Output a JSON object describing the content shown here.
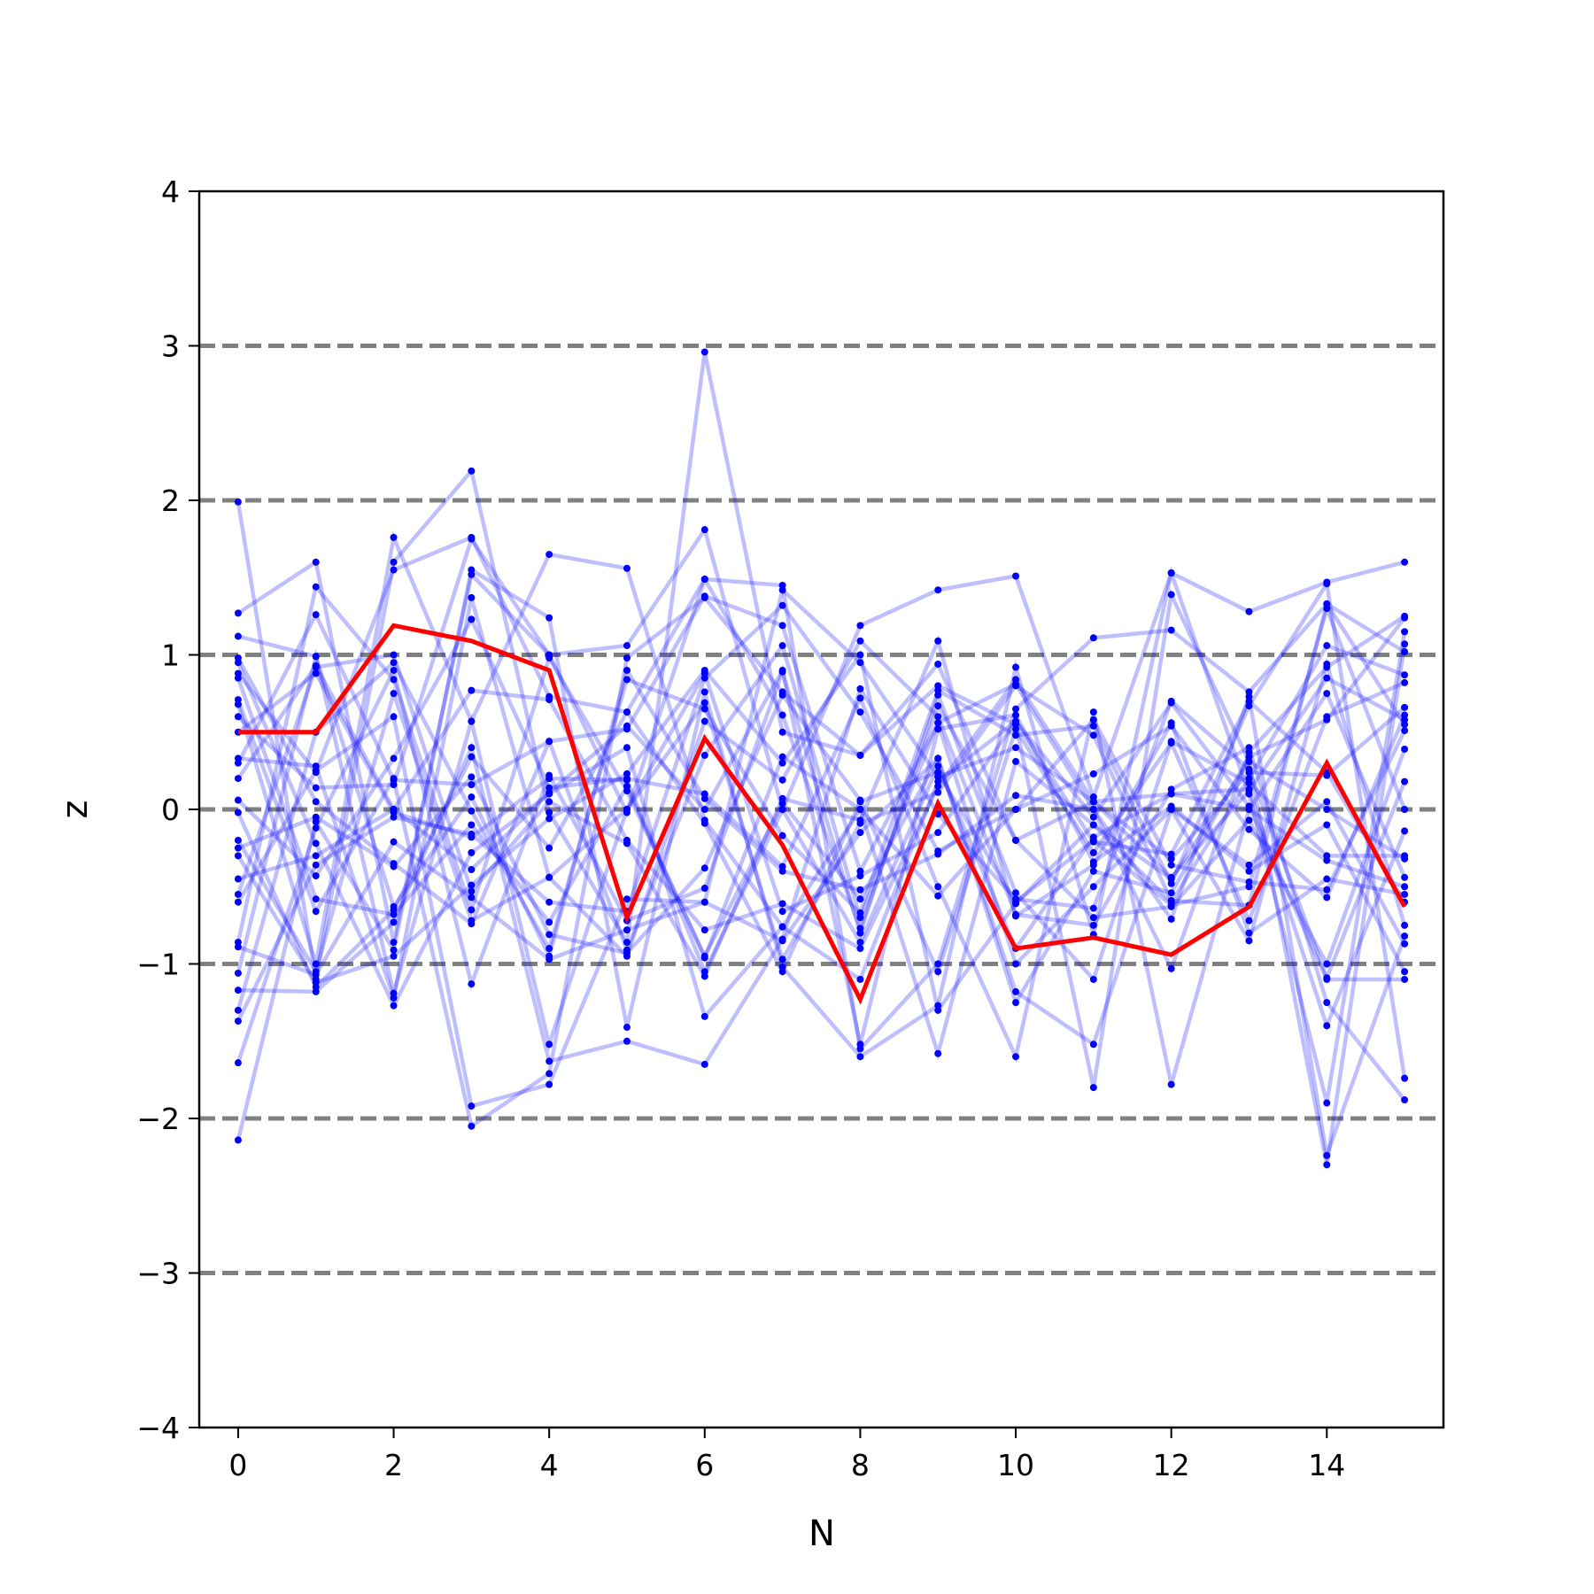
{
  "chart_data": {
    "type": "line",
    "xlabel": "N",
    "ylabel": "z",
    "xlim": [
      -0.5,
      15.5
    ],
    "ylim": [
      -4,
      4
    ],
    "xticks": [
      0,
      2,
      4,
      6,
      8,
      10,
      12,
      14
    ],
    "yticks": [
      -4,
      -3,
      -2,
      -1,
      0,
      1,
      2,
      3,
      4
    ],
    "xtick_labels": [
      "0",
      "2",
      "4",
      "6",
      "8",
      "10",
      "12",
      "14"
    ],
    "ytick_labels": [
      "−4",
      "−3",
      "−2",
      "−1",
      "0",
      "1",
      "2",
      "3",
      "4"
    ],
    "reference_lines": [
      -3,
      -2,
      -1,
      0,
      1,
      2,
      3
    ],
    "colors": {
      "samples": "#0000ff",
      "highlight": "#ff0000",
      "reference": "#808080"
    },
    "x": [
      0,
      1,
      2,
      3,
      4,
      5,
      6,
      7,
      8,
      9,
      10,
      11,
      12,
      13,
      14,
      15
    ],
    "highlight": [
      0.5,
      0.5,
      1.19,
      1.09,
      0.9,
      -0.7,
      0.46,
      -0.23,
      -1.23,
      0.04,
      -0.9,
      -0.83,
      -0.94,
      -0.63,
      0.3,
      -0.63
    ],
    "samples": [
      [
        1.99,
        -1.1,
        1.6,
        2.19,
        -0.02,
        -0.86,
        2.96,
        0.5,
        0.35,
        0.8,
        0.55,
        -1.8,
        1.39,
        0.31,
        -2.3,
        1.07
      ],
      [
        1.27,
        1.6,
        -0.86,
        1.52,
        1.0,
        1.06,
        1.81,
        0.0,
        1.19,
        1.42,
        1.51,
        0.08,
        1.53,
        1.28,
        1.47,
        1.6
      ],
      [
        0.88,
        0.24,
        1.55,
        1.76,
        0.73,
        0.63,
        1.49,
        1.45,
        -1.55,
        -1.0,
        0.65,
        1.11,
        1.16,
        0.76,
        1.33,
        0.55
      ],
      [
        0.68,
        -1.0,
        1.76,
        0.57,
        1.65,
        1.56,
        -0.07,
        -0.76,
        0.0,
        -1.58,
        0.31,
        -0.1,
        -0.6,
        0.2,
        1.06,
        0.87
      ],
      [
        0.3,
        1.26,
        0.19,
        0.16,
        0.44,
        0.52,
        1.38,
        1.19,
        -0.4,
        0.56,
        0.81,
        0.0,
        -1.03,
        0.37,
        0.92,
        1.25
      ],
      [
        0.06,
        -0.43,
        0.33,
        1.23,
        0.14,
        0.2,
        0.1,
        -0.37,
        0.72,
        -0.5,
        -1.6,
        0.63,
        -1.78,
        0.0,
        0.75,
        -0.44
      ],
      [
        -0.25,
        -0.05,
        -0.37,
        0.21,
        -0.81,
        -0.93,
        -0.38,
        0.74,
        0.06,
        -1.05,
        0.52,
        -0.28,
        0.43,
        -0.72,
        0.6,
        0.82
      ],
      [
        -0.55,
        0.92,
        1.0,
        -0.53,
        0.05,
        -0.22,
        -1.08,
        0.07,
        -0.07,
        1.09,
        -0.69,
        -0.36,
        0.56,
        -0.8,
        -0.45,
        -0.55
      ],
      [
        -0.86,
        1.44,
        0.84,
        -0.65,
        0.98,
        0.12,
        -0.95,
        0.04,
        -0.58,
        0.33,
        -1.18,
        -1.52,
        0.0,
        -0.36,
        0.05,
        -0.87
      ],
      [
        -1.17,
        -1.18,
        -0.73,
        0.4,
        -1.63,
        -1.5,
        -1.65,
        -0.84,
        0.78,
        -0.03,
        -0.58,
        -0.64,
        0.7,
        0.26,
        -1.09,
        0.18
      ],
      [
        -1.37,
        -0.36,
        -0.05,
        -0.16,
        -0.6,
        -0.66,
        0.85,
        1.32,
        0.63,
        -0.27,
        0.0,
        0.58,
        -0.36,
        -0.47,
        -0.52,
        0.51
      ],
      [
        -2.14,
        -0.08,
        -0.91,
        1.55,
        1.24,
        -1.41,
        0.76,
        -1.02,
        -1.6,
        -1.27,
        0.92,
        -0.81,
        1.53,
        0.1,
        -1.9,
        1.15
      ],
      [
        -1.3,
        0.5,
        0.95,
        -0.01,
        -0.9,
        0.84,
        0.65,
        -0.17,
        -0.67,
        0.77,
        0.48,
        0.54,
        -0.48,
        0.67,
        1.46,
        -1.74
      ],
      [
        -1.64,
        -0.12,
        0.9,
        -1.13,
        0.22,
        -0.72,
        -0.51,
        0.89,
        -0.8,
        0.74,
        -0.54,
        -1.1,
        0.44,
        0.17,
        -0.3,
        -0.3
      ],
      [
        0.33,
        0.28,
        -1.22,
        1.37,
        -0.44,
        -0.95,
        0.57,
        0.19,
        1.09,
        0.6,
        -0.68,
        -0.75,
        0.13,
        0.4,
        -1.25,
        -1.88
      ],
      [
        -1.06,
        0.99,
        -0.63,
        0.08,
        -0.95,
        0.9,
        0.07,
        -0.4,
        -0.52,
        -0.29,
        0.09,
        0.0,
        -0.71,
        0.73,
        -2.24,
        -0.82
      ],
      [
        0.95,
        -0.22,
        -1.27,
        -0.28,
        0.1,
        0.4,
        -1.34,
        -0.76,
        -1.1,
        0.18,
        0.57,
        -0.21,
        -0.29,
        0.7,
        0.24,
        -0.6
      ],
      [
        0.71,
        -0.66,
        0.2,
        -2.05,
        -1.71,
        0.98,
        1.37,
        0.76,
        0.35,
        0.94,
        -0.2,
        -0.7,
        -0.63,
        -0.07,
        -1.0,
        0.39
      ],
      [
        -0.89,
        -1.07,
        -0.21,
        -0.57,
        -0.97,
        -0.78,
        -0.6,
        1.42,
        0.95,
        0.21,
        0.4,
        0.05,
        0.1,
        0.13,
        -1.4,
        -0.14
      ],
      [
        0.85,
        -0.58,
        -0.68,
        -0.1,
        -0.73,
        0.15,
        -0.96,
        0.34,
        0.0,
        -0.56,
        0.0,
        0.23,
        0.54,
        -0.13,
        -0.57,
        0.61
      ],
      [
        1.12,
        0.99,
        -1.19,
        0.57,
        -1.52,
        0.0,
        0.69,
        -0.97,
        -0.09,
        0.11,
        0.8,
        0.48,
        -0.59,
        -0.62,
        1.33,
        1.02
      ],
      [
        -0.2,
        -1.05,
        0.75,
        -0.72,
        -0.44,
        0.0,
        0.88,
        -0.66,
        -0.43,
        -0.15,
        0.57,
        -0.05,
        0.69,
        0.02,
        -1.1,
        -1.1
      ],
      [
        0.6,
        0.14,
        0.16,
        1.75,
        1.0,
        -0.02,
        1.49,
        0.61,
        -0.77,
        0.67,
        -0.2,
        0.05,
        -0.32,
        0.24,
        0.22,
        0.66
      ],
      [
        -0.3,
        -1.12,
        -0.95,
        -0.49,
        -0.06,
        0.23,
        0.9,
        0.3,
        1.0,
        -1.3,
        -0.61,
        -0.1,
        -0.45,
        0.31,
        0.0,
        -0.32
      ],
      [
        0.98,
        0.05,
        -0.35,
        -0.74,
        0.44,
        -0.91,
        0.35,
        1.06,
        -0.7,
        0.56,
        -1.0,
        -0.5,
        0.0,
        -0.85,
        0.94,
        -0.75
      ],
      [
        -0.02,
        -1.15,
        -0.65,
        0.34,
        -0.25,
        0.63,
        -0.09,
        -1.05,
        0.05,
        0.24,
        -0.6,
        -0.2,
        -0.62,
        -0.5,
        1.3,
        0.0
      ],
      [
        0.5,
        0.88,
        -0.02,
        -0.18,
        0.2,
        0.19,
        -1.05,
        0.0,
        -0.86,
        0.28,
        -0.9,
        -0.18,
        0.1,
        0.0,
        -0.33,
        -0.5
      ],
      [
        -0.6,
        0.25,
        0.6,
        -1.92,
        -1.78,
        -0.58,
        -0.6,
        -0.85,
        -0.15,
        0.33,
        -1.25,
        -0.4,
        -0.54,
        0.34,
        0.58,
        1.24
      ],
      [
        0.2,
        0.93,
        0.0,
        -0.39,
        0.11,
        0.54,
        0.0,
        0.9,
        -1.52,
        0.52,
        0.61,
        -0.34,
        0.02,
        -0.4,
        -0.1,
        -1.05
      ],
      [
        -0.45,
        -0.3,
        0.0,
        0.77,
        0.71,
        -0.2,
        -0.78,
        -0.61,
        -0.9,
        0.15,
        0.84,
        0.05,
        -0.44,
        0.12,
        0.85,
        0.58
      ]
    ]
  }
}
